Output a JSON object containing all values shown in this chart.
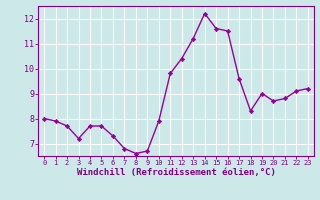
{
  "x": [
    0,
    1,
    2,
    3,
    4,
    5,
    6,
    7,
    8,
    9,
    10,
    11,
    12,
    13,
    14,
    15,
    16,
    17,
    18,
    19,
    20,
    21,
    22,
    23
  ],
  "y": [
    8.0,
    7.9,
    7.7,
    7.2,
    7.7,
    7.7,
    7.3,
    6.8,
    6.6,
    6.7,
    7.9,
    9.8,
    10.4,
    11.2,
    12.2,
    11.6,
    11.5,
    9.6,
    8.3,
    9.0,
    8.7,
    8.8,
    9.1,
    9.2
  ],
  "line_color": "#990099",
  "marker": "D",
  "marker_size": 2.2,
  "linewidth": 1.0,
  "bg_color": "#cce8e8",
  "grid_color": "#ffffff",
  "xlabel": "Windchill (Refroidissement éolien,°C)",
  "xlabel_color": "#800080",
  "tick_color": "#800080",
  "ylim": [
    6.5,
    12.5
  ],
  "xlim": [
    -0.5,
    23.5
  ],
  "yticks": [
    7,
    8,
    9,
    10,
    11,
    12
  ],
  "xtick_labels": [
    "0",
    "1",
    "2",
    "3",
    "4",
    "5",
    "6",
    "7",
    "8",
    "9",
    "10",
    "11",
    "12",
    "13",
    "14",
    "15",
    "16",
    "17",
    "18",
    "19",
    "20",
    "21",
    "22",
    "23"
  ],
  "figsize": [
    3.2,
    2.0
  ],
  "dpi": 100
}
